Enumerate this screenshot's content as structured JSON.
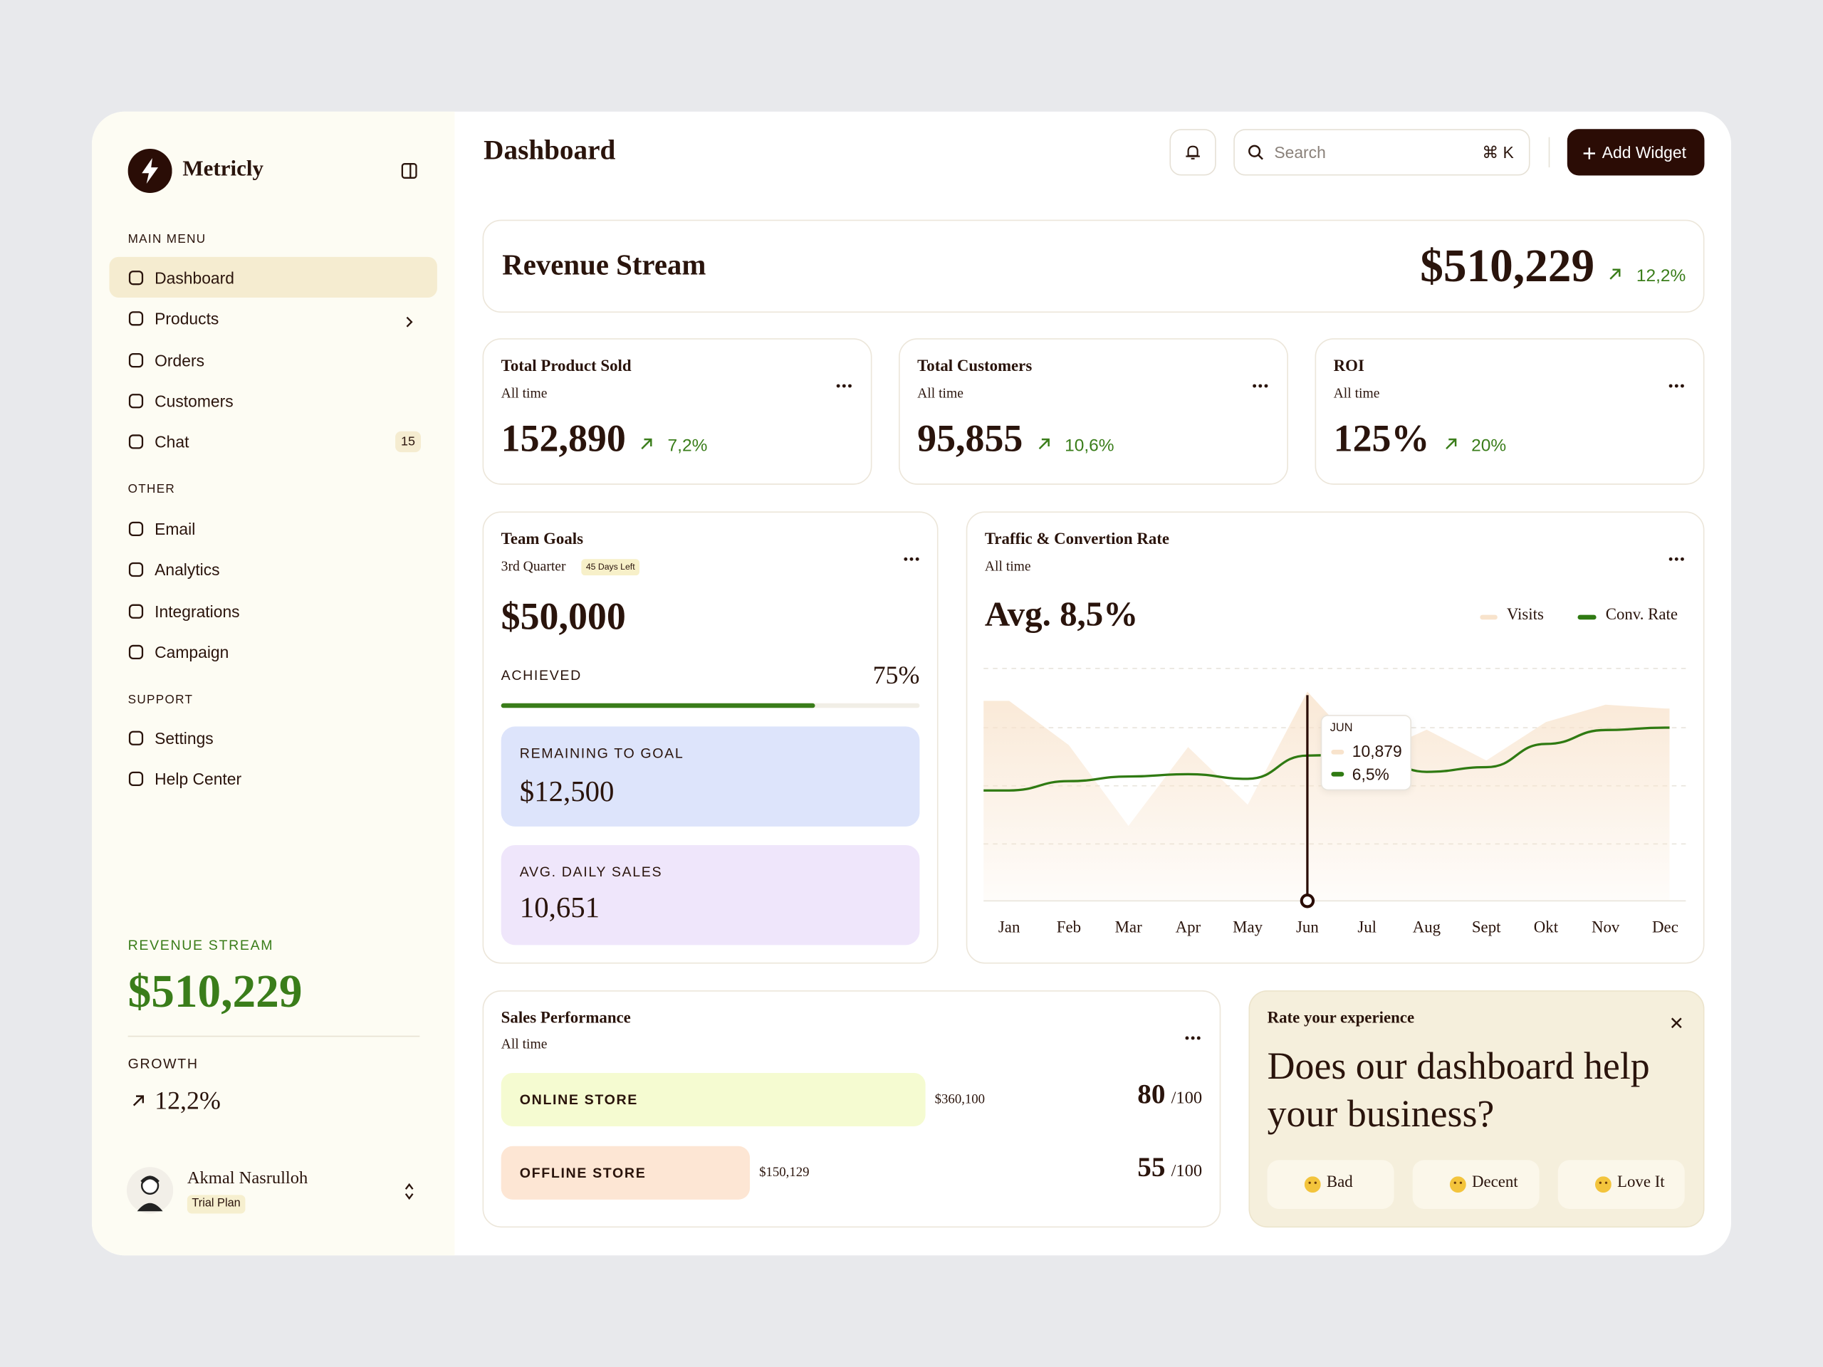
{
  "sidebar": {
    "brand": "Metricly",
    "main_menu_title": "MAIN MENU",
    "main_menu": [
      "Dashboard",
      "Products",
      "Orders",
      "Customers",
      "Chat"
    ],
    "chat_badge": "15",
    "other_title": "OTHER",
    "other": [
      "Email",
      "Analytics",
      "Integrations",
      "Campaign"
    ],
    "support_title": "SUPPORT",
    "support": [
      "Settings",
      "Help Center"
    ],
    "revenue_title": "REVENUE STREAM",
    "revenue": "$510,229",
    "growth_title": "GROWTH",
    "growth": "12,2%",
    "user": {
      "name": "Akmal Nasrulloh",
      "plan": "Trial Plan"
    }
  },
  "header": {
    "title": "Dashboard",
    "search_placeholder": "Search",
    "shortcut": "⌘ K",
    "add_button": "Add Widget"
  },
  "revenue_stream": {
    "title": "Revenue Stream",
    "value": "$510,229",
    "change": "12,2%"
  },
  "stats": [
    {
      "title": "Total Product Sold",
      "period": "All time",
      "value": "152,890",
      "change": "7,2%"
    },
    {
      "title": "Total Customers",
      "period": "All time",
      "value": "95,855",
      "change": "10,6%"
    },
    {
      "title": "ROI",
      "period": "All time",
      "value": "125%",
      "change": "20%"
    }
  ],
  "team_goals": {
    "title": "Team Goals",
    "period": "3rd Quarter",
    "badge": "45 Days Left",
    "goal": "$50,000",
    "achieved_title": "ACHIEVED",
    "achieved": 75,
    "achieved_label": "75%",
    "remaining_title": "REMAINING TO GOAL",
    "remaining": "$12,500",
    "avg_title": "AVG. DAILY SALES",
    "avg": "10,651"
  },
  "traffic": {
    "title": "Traffic & Convertion Rate",
    "period": "All time",
    "summary": "Avg. 8,5%",
    "chart_data": {
      "type": "area",
      "categories": [
        "Jan",
        "Feb",
        "Mar",
        "Apr",
        "May",
        "Jun",
        "Jul",
        "Aug",
        "Sept",
        "Okt",
        "Nov",
        "Dec"
      ],
      "tooltip_title": "JUN",
      "series": [
        {
          "name": "Visits",
          "color": "#f8e3cc",
          "values": [
            10400,
            8100,
            3900,
            8000,
            5000,
            10879,
            7500,
            8900,
            7300,
            9300,
            10200,
            10000
          ],
          "value_labels": [
            null,
            null,
            null,
            null,
            null,
            "10,879",
            null,
            null,
            null,
            null,
            null,
            null
          ]
        },
        {
          "name": "Conv. Rate",
          "color": "#2f7a12",
          "values": [
            5.0,
            5.4,
            5.6,
            5.7,
            5.5,
            6.5,
            6.6,
            5.8,
            6.0,
            7.0,
            7.6,
            7.7
          ],
          "value_labels": [
            null,
            null,
            null,
            null,
            null,
            "6,5%",
            null,
            null,
            null,
            null,
            null,
            null
          ]
        }
      ]
    }
  },
  "sales_performance": {
    "title": "Sales Performance",
    "period": "All time",
    "rows": [
      {
        "name": "ONLINE STORE",
        "amount": "$360,100",
        "score": "80",
        "max": "/100"
      },
      {
        "name": "OFFLINE STORE",
        "amount": "$150,129",
        "max": "/100",
        "score": "55"
      }
    ]
  },
  "feedback": {
    "title": "Rate your experience",
    "question": "Does our dashboard help your business?",
    "options": [
      "Bad",
      "Decent",
      "Love It"
    ]
  }
}
